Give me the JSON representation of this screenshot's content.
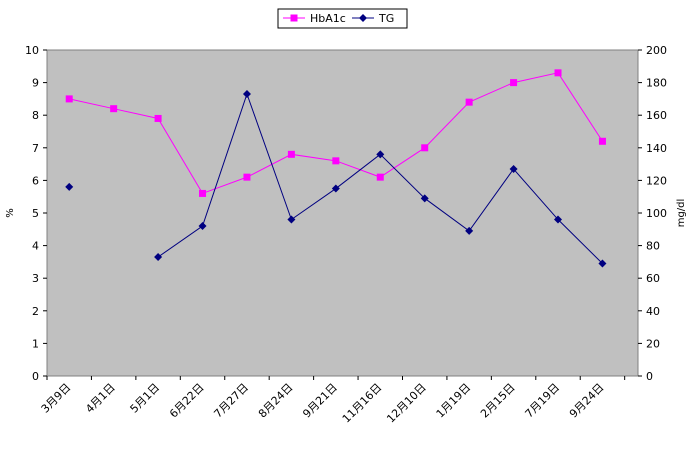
{
  "chart_data": {
    "type": "line",
    "categories": [
      "3月9日",
      "4月1日",
      "5月1日",
      "6月22日",
      "7月27日",
      "8月24日",
      "9月21日",
      "11月16日",
      "12月10日",
      "1月19日",
      "2月15日",
      "7月19日",
      "9月24日"
    ],
    "series": [
      {
        "name": "HbA1c",
        "axis": "left",
        "color": "#ff00ff",
        "marker": "square",
        "values": [
          8.5,
          8.2,
          7.9,
          5.6,
          6.1,
          6.8,
          6.6,
          6.1,
          7.0,
          8.4,
          9.0,
          9.3,
          7.2
        ]
      },
      {
        "name": "TG",
        "axis": "right",
        "color": "#000080",
        "marker": "diamond",
        "values": [
          116,
          null,
          73,
          92,
          173,
          96,
          115,
          136,
          109,
          89,
          127,
          96,
          69
        ]
      }
    ],
    "left_axis": {
      "label": "%",
      "ylim": [
        0,
        10
      ],
      "ticks": [
        "0",
        "1",
        "2",
        "3",
        "4",
        "5",
        "6",
        "7",
        "8",
        "9",
        "10"
      ]
    },
    "right_axis": {
      "label": "mg/dl",
      "ylim": [
        0,
        200
      ],
      "ticks": [
        "0",
        "20",
        "40",
        "60",
        "80",
        "100",
        "120",
        "140",
        "160",
        "180",
        "200"
      ]
    },
    "plot_background": "#c0c0c0",
    "grid": false,
    "legend_position": "top-center"
  }
}
